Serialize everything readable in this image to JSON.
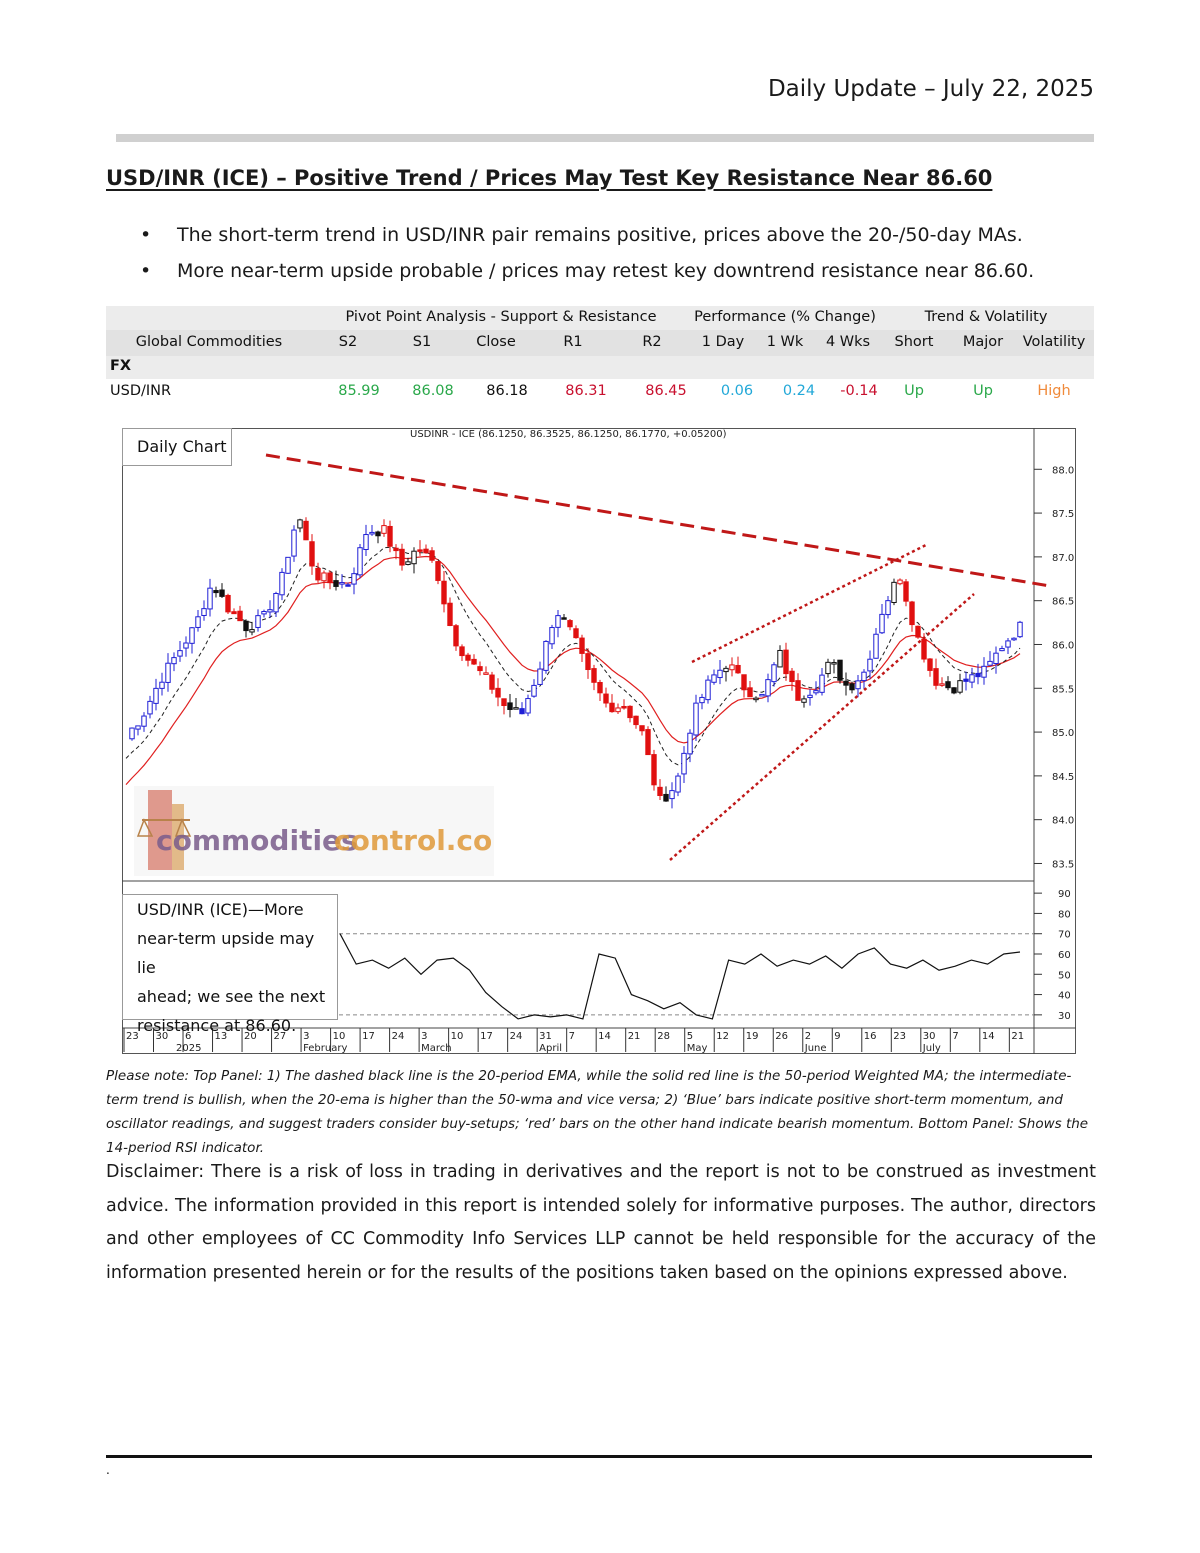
{
  "header": {
    "date": "Daily Update – July 22, 2025"
  },
  "title": "USD/INR (ICE) – Positive Trend / Prices May Test Key Resistance Near 86.60",
  "bullets": [
    "The short-term trend in USD/INR pair remains positive, prices above the 20-/50-day MAs.",
    "More near-term upside probable / prices may retest key downtrend resistance near 86.60."
  ],
  "table": {
    "group_headers": {
      "pivot": "Pivot Point Analysis - Support & Resistance",
      "performance": "Performance (% Change)",
      "trend": "Trend & Volatility"
    },
    "columns": [
      "Global Commodities",
      "S2",
      "S1",
      "Close",
      "R1",
      "R2",
      "1 Day",
      "1 Wk",
      "4 Wks",
      "Short",
      "Major",
      "Volatility"
    ],
    "section": "FX",
    "row": {
      "name": "USD/INR",
      "s2": "85.99",
      "s1": "86.08",
      "close": "86.18",
      "r1": "86.31",
      "r2": "86.45",
      "d1": "0.06",
      "wk1": "0.24",
      "wk4": "-0.14",
      "short": "Up",
      "major": "Up",
      "volatility": "High"
    },
    "colors": {
      "support": "#2aa84a",
      "resistance": "#c8102e",
      "positive": "#22a8d8",
      "negative": "#c8102e",
      "trend": "#2aa84a",
      "volatility": "#f08a3a"
    }
  },
  "chart": {
    "panel_label": "Daily Chart",
    "header_text": "USDINR - ICE (86.1250, 86.3525, 86.1250, 86.1770, +0.05200)",
    "price_ticks": [
      "88.0",
      "87.5",
      "87.0",
      "86.5",
      "86.0",
      "85.5",
      "85.0",
      "84.5",
      "84.0",
      "83.5"
    ],
    "rsi_ticks": [
      "90",
      "80",
      "70",
      "60",
      "50",
      "40",
      "30"
    ],
    "date_ticks": [
      "23",
      "30",
      "6",
      "13",
      "20",
      "27",
      "3",
      "10",
      "17",
      "24",
      "3",
      "10",
      "17",
      "24",
      "31",
      "7",
      "14",
      "21",
      "28",
      "5",
      "12",
      "19",
      "26",
      "2",
      "9",
      "16",
      "23",
      "30",
      "7",
      "14",
      "21"
    ],
    "month_labels": [
      "2025",
      "February",
      "March",
      "April",
      "May",
      "June",
      "July"
    ],
    "rsi_note": [
      "USD/INR (ICE)—More",
      "near-term upside may lie",
      "ahead; we see the next",
      "resistance at 86.60."
    ],
    "watermark": {
      "part1": "commodities",
      "part2": "control.com"
    }
  },
  "chart_data": {
    "type": "candlestick",
    "title": "USDINR - ICE (86.1250, 86.3525, 86.1250, 86.1770, +0.05200)",
    "ylim": [
      83.3,
      88.3
    ],
    "close_path": [
      84.95,
      85.2,
      85.6,
      85.9,
      86.2,
      86.7,
      86.4,
      86.2,
      86.3,
      86.7,
      87.5,
      86.8,
      86.7,
      86.7,
      87.3,
      87.3,
      86.9,
      87.1,
      86.9,
      86.1,
      85.8,
      85.6,
      85.3,
      85.2,
      85.7,
      86.4,
      86.1,
      85.6,
      85.3,
      85.3,
      85.0,
      84.2,
      84.4,
      85.2,
      85.6,
      85.8,
      85.5,
      85.4,
      85.9,
      85.4,
      85.5,
      85.8,
      85.5,
      85.7,
      86.4,
      86.8,
      86.1,
      85.6,
      85.5,
      85.6,
      85.7,
      86.0,
      86.2
    ],
    "rsi_ylim": [
      25,
      95
    ],
    "rsi": [
      70,
      55,
      57,
      53,
      58,
      50,
      57,
      58,
      52,
      41,
      34,
      28,
      30,
      29,
      30,
      28,
      60,
      58,
      40,
      37,
      33,
      36,
      30,
      28,
      57,
      55,
      60,
      54,
      57,
      55,
      59,
      53,
      60,
      63,
      55,
      53,
      57,
      52,
      54,
      57,
      55,
      60,
      61
    ],
    "ema20": "dashed black",
    "wma50": "solid red",
    "resistance_level": 86.6
  },
  "note_text": "Please note: Top Panel: 1) The dashed black line is the 20-period EMA, while the solid red line is the 50-period Weighted MA; the intermediate-term trend is bullish, when the 20-ema is higher than the 50-wma and vice versa; 2)  ‘Blue’  bars indicate positive short-term momentum, and oscillator readings, and suggest traders consider buy-setups;  ‘red’  bars on the other hand indicate bearish momentum. Bottom Panel: Shows the 14-period RSI indicator.",
  "disclaimer": "Disclaimer: There is a risk of loss in trading in derivatives and the report is not to be construed as investment advice. The information provided in this report is intended solely for informative purposes. The author, directors and other employees of CC Commodity Info Services LLP cannot be held responsible for the accuracy of the information presented herein or for the results of the positions taken based on the opinions expressed above.",
  "footer": {
    "mark": "."
  }
}
